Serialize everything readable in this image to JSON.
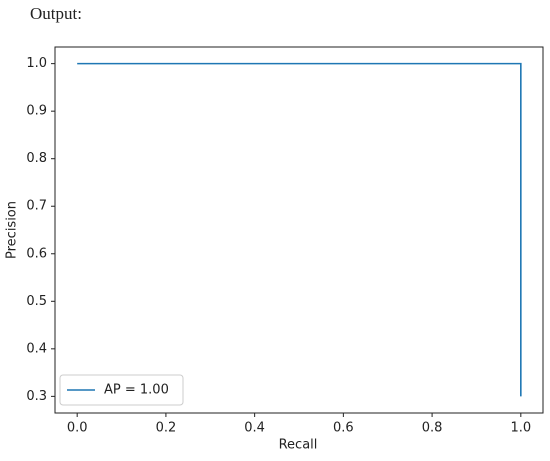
{
  "output_label": "Output:",
  "chart_data": {
    "type": "line",
    "x_label": "Recall",
    "y_label": "Precision",
    "x": [
      0,
      1,
      1
    ],
    "series": [
      {
        "name": "AP = 1.00",
        "color": "#1f77b4",
        "values": [
          1,
          1,
          0.3
        ]
      }
    ],
    "xlim": [
      -0.05,
      1.05
    ],
    "ylim": [
      0.265,
      1.035
    ],
    "xticks": [
      {
        "value": 0,
        "label": "0.0"
      },
      0.2,
      0.4,
      0.6,
      0.8,
      {
        "value": 1,
        "label": "1.0"
      }
    ],
    "yticks": [
      0.3,
      0.4,
      0.5,
      0.6,
      0.7,
      0.8,
      0.9,
      {
        "value": 1,
        "label": "1.0"
      }
    ],
    "grid": false,
    "legend": "lower left"
  }
}
